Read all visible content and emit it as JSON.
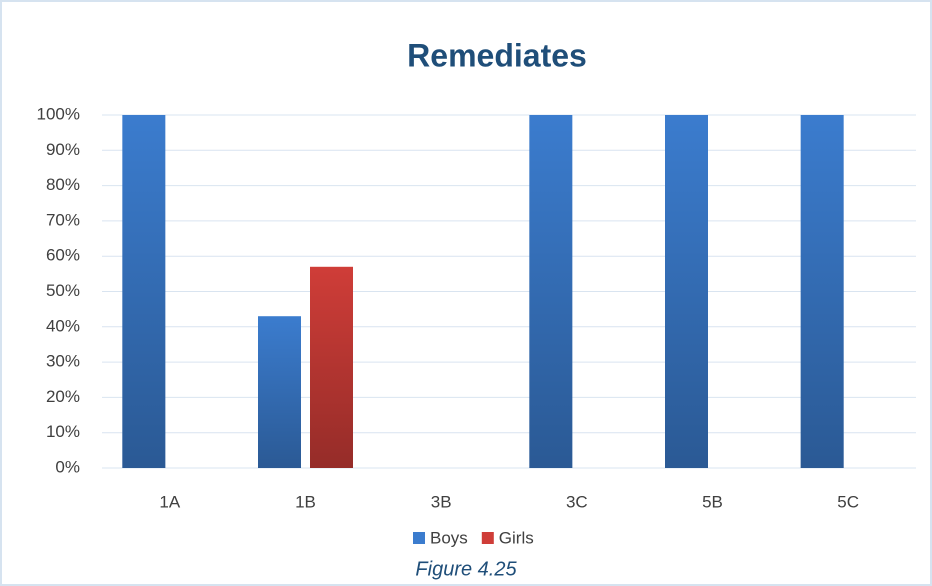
{
  "chart_data": {
    "type": "bar",
    "title": "Remediates",
    "categories": [
      "1A",
      "1B",
      "3B",
      "3C",
      "5B",
      "5C"
    ],
    "series": [
      {
        "name": "Boys",
        "color": "#3b7cce",
        "values": [
          100,
          43,
          0,
          100,
          100,
          100
        ]
      },
      {
        "name": "Girls",
        "color": "#cf3d38",
        "values": [
          0,
          57,
          0,
          0,
          0,
          0
        ]
      }
    ],
    "ylim": [
      0,
      100
    ],
    "yticks": [
      {
        "value": 0,
        "label": "0%"
      },
      {
        "value": 10,
        "label": "10%"
      },
      {
        "value": 20,
        "label": "20%"
      },
      {
        "value": 30,
        "label": "30%"
      },
      {
        "value": 40,
        "label": "40%"
      },
      {
        "value": 50,
        "label": "50%"
      },
      {
        "value": 60,
        "label": "60%"
      },
      {
        "value": 70,
        "label": "70%"
      },
      {
        "value": 80,
        "label": "80%"
      },
      {
        "value": 90,
        "label": "90%"
      },
      {
        "value": 100,
        "label": "100%"
      }
    ],
    "grid": true,
    "legend": "bottom",
    "caption": "Figure 4.25"
  }
}
